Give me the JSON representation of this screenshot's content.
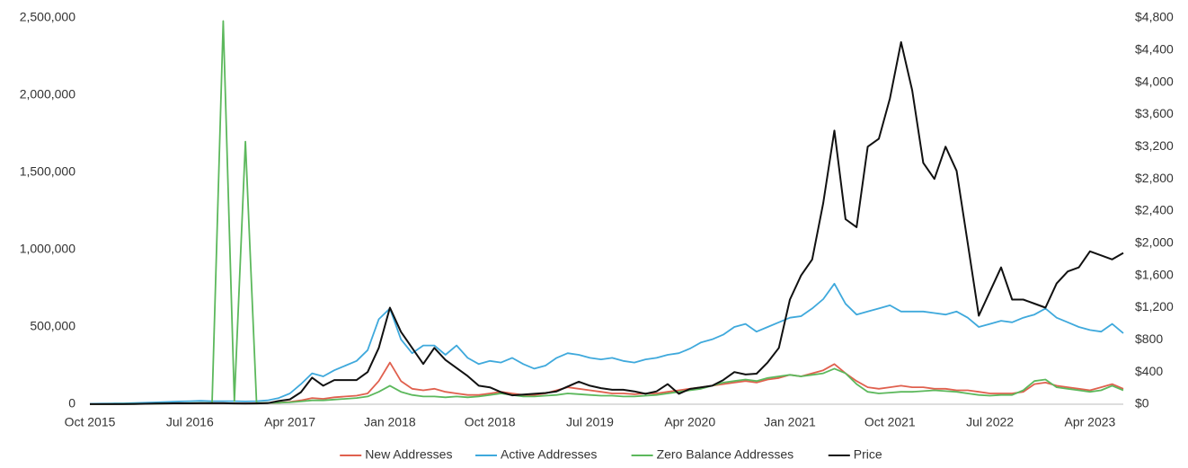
{
  "chart_data": {
    "type": "line",
    "x": [
      "2015-10",
      "2015-11",
      "2015-12",
      "2016-01",
      "2016-02",
      "2016-03",
      "2016-04",
      "2016-05",
      "2016-06",
      "2016-07",
      "2016-08",
      "2016-09",
      "2016-10",
      "2016-11",
      "2016-12",
      "2017-01",
      "2017-02",
      "2017-03",
      "2017-04",
      "2017-05",
      "2017-06",
      "2017-07",
      "2017-08",
      "2017-09",
      "2017-10",
      "2017-11",
      "2017-12",
      "2018-01",
      "2018-02",
      "2018-03",
      "2018-04",
      "2018-05",
      "2018-06",
      "2018-07",
      "2018-08",
      "2018-09",
      "2018-10",
      "2018-11",
      "2018-12",
      "2019-01",
      "2019-02",
      "2019-03",
      "2019-04",
      "2019-05",
      "2019-06",
      "2019-07",
      "2019-08",
      "2019-09",
      "2019-10",
      "2019-11",
      "2019-12",
      "2020-01",
      "2020-02",
      "2020-03",
      "2020-04",
      "2020-05",
      "2020-06",
      "2020-07",
      "2020-08",
      "2020-09",
      "2020-10",
      "2020-11",
      "2020-12",
      "2021-01",
      "2021-02",
      "2021-03",
      "2021-04",
      "2021-05",
      "2021-06",
      "2021-07",
      "2021-08",
      "2021-09",
      "2021-10",
      "2021-11",
      "2021-12",
      "2022-01",
      "2022-02",
      "2022-03",
      "2022-04",
      "2022-05",
      "2022-06",
      "2022-07",
      "2022-08",
      "2022-09",
      "2022-10",
      "2022-11",
      "2022-12",
      "2023-01",
      "2023-02",
      "2023-03",
      "2023-04",
      "2023-05",
      "2023-06",
      "2023-07"
    ],
    "series": [
      {
        "name": "New Addresses",
        "color": "#e0604e",
        "values": [
          1000,
          1500,
          2000,
          2500,
          3000,
          4000,
          5000,
          5000,
          6000,
          6000,
          7000,
          7000,
          7000,
          6000,
          6000,
          7000,
          8000,
          10000,
          15000,
          25000,
          40000,
          35000,
          45000,
          50000,
          55000,
          70000,
          150000,
          270000,
          150000,
          100000,
          90000,
          100000,
          80000,
          70000,
          60000,
          60000,
          70000,
          80000,
          70000,
          60000,
          60000,
          70000,
          90000,
          110000,
          100000,
          90000,
          80000,
          70000,
          70000,
          65000,
          70000,
          70000,
          80000,
          90000,
          100000,
          110000,
          120000,
          130000,
          140000,
          150000,
          140000,
          160000,
          170000,
          190000,
          180000,
          200000,
          220000,
          260000,
          200000,
          150000,
          110000,
          100000,
          110000,
          120000,
          110000,
          110000,
          100000,
          100000,
          90000,
          90000,
          80000,
          70000,
          70000,
          70000,
          80000,
          130000,
          140000,
          120000,
          110000,
          100000,
          90000,
          110000,
          130000,
          100000
        ]
      },
      {
        "name": "Active Addresses",
        "color": "#3fa9dc",
        "values": [
          3000,
          4000,
          5000,
          6000,
          8000,
          10000,
          12000,
          15000,
          18000,
          20000,
          22000,
          20000,
          20000,
          20000,
          18000,
          20000,
          25000,
          40000,
          70000,
          130000,
          200000,
          180000,
          220000,
          250000,
          280000,
          350000,
          550000,
          620000,
          420000,
          330000,
          380000,
          380000,
          320000,
          380000,
          300000,
          260000,
          280000,
          270000,
          300000,
          260000,
          230000,
          250000,
          300000,
          330000,
          320000,
          300000,
          290000,
          300000,
          280000,
          270000,
          290000,
          300000,
          320000,
          330000,
          360000,
          400000,
          420000,
          450000,
          500000,
          520000,
          470000,
          500000,
          530000,
          560000,
          570000,
          620000,
          680000,
          780000,
          650000,
          580000,
          600000,
          620000,
          640000,
          600000,
          600000,
          600000,
          590000,
          580000,
          600000,
          560000,
          500000,
          520000,
          540000,
          530000,
          560000,
          580000,
          620000,
          560000,
          530000,
          500000,
          480000,
          470000,
          520000,
          460000
        ]
      },
      {
        "name": "Zero Balance Addresses",
        "color": "#5cb85c",
        "values": [
          500,
          800,
          1000,
          1500,
          2000,
          3000,
          4000,
          5000,
          6000,
          7000,
          8000,
          8000,
          2480000,
          20000,
          1700000,
          8000,
          9000,
          10000,
          12000,
          18000,
          25000,
          25000,
          30000,
          35000,
          40000,
          50000,
          80000,
          120000,
          80000,
          60000,
          50000,
          50000,
          45000,
          50000,
          45000,
          50000,
          60000,
          70000,
          60000,
          50000,
          50000,
          55000,
          60000,
          70000,
          65000,
          60000,
          55000,
          55000,
          50000,
          50000,
          55000,
          60000,
          70000,
          80000,
          90000,
          100000,
          120000,
          140000,
          150000,
          160000,
          150000,
          170000,
          180000,
          190000,
          180000,
          190000,
          200000,
          230000,
          200000,
          130000,
          80000,
          70000,
          75000,
          80000,
          80000,
          85000,
          90000,
          85000,
          80000,
          70000,
          60000,
          55000,
          60000,
          60000,
          90000,
          150000,
          160000,
          110000,
          100000,
          90000,
          80000,
          90000,
          120000,
          90000
        ]
      },
      {
        "name": "Price",
        "color": "#111111",
        "axis": "y2",
        "values": [
          1,
          1,
          1,
          1,
          3,
          6,
          8,
          10,
          12,
          11,
          12,
          12,
          12,
          10,
          8,
          10,
          13,
          40,
          60,
          150,
          330,
          230,
          300,
          300,
          300,
          400,
          700,
          1200,
          900,
          700,
          500,
          700,
          550,
          450,
          350,
          230,
          210,
          150,
          110,
          120,
          130,
          140,
          160,
          220,
          280,
          230,
          200,
          180,
          180,
          160,
          130,
          160,
          250,
          130,
          190,
          210,
          230,
          300,
          400,
          370,
          380,
          520,
          700,
          1300,
          1600,
          1800,
          2500,
          3400,
          2300,
          2200,
          3200,
          3300,
          3800,
          4500,
          3900,
          3000,
          2800,
          3200,
          2900,
          2000,
          1100,
          1400,
          1700,
          1300,
          1300,
          1250,
          1200,
          1500,
          1650,
          1700,
          1900,
          1850,
          1800,
          1880
        ]
      }
    ],
    "xlim": [
      "2015-10",
      "2023-07"
    ],
    "xticks": [
      {
        "value": "2015-10",
        "label": "Oct 2015"
      },
      {
        "value": "2016-07",
        "label": "Jul 2016"
      },
      {
        "value": "2017-04",
        "label": "Apr 2017"
      },
      {
        "value": "2018-01",
        "label": "Jan 2018"
      },
      {
        "value": "2018-10",
        "label": "Oct 2018"
      },
      {
        "value": "2019-07",
        "label": "Jul 2019"
      },
      {
        "value": "2020-04",
        "label": "Apr 2020"
      },
      {
        "value": "2021-01",
        "label": "Jan 2021"
      },
      {
        "value": "2021-10",
        "label": "Oct 2021"
      },
      {
        "value": "2022-07",
        "label": "Jul 2022"
      },
      {
        "value": "2023-04",
        "label": "Apr 2023"
      }
    ],
    "ylim": [
      0,
      2500000
    ],
    "yticks": [
      0,
      {
        "value": 500000,
        "label": "500,000"
      },
      {
        "value": 1000000,
        "label": "1,000,000"
      },
      {
        "value": 1500000,
        "label": "1,500,000"
      },
      {
        "value": 2000000,
        "label": "2,000,000"
      },
      {
        "value": 2500000,
        "label": "2,500,000"
      }
    ],
    "y2lim": [
      0,
      4800
    ],
    "y2ticks": [
      {
        "value": 0,
        "label": "$0"
      },
      {
        "value": 400,
        "label": "$400"
      },
      {
        "value": 800,
        "label": "$800"
      },
      {
        "value": 1200,
        "label": "$1,200"
      },
      {
        "value": 1600,
        "label": "$1,600"
      },
      {
        "value": 2000,
        "label": "$2,000"
      },
      {
        "value": 2400,
        "label": "$2,400"
      },
      {
        "value": 2800,
        "label": "$2,800"
      },
      {
        "value": 3200,
        "label": "$3,200"
      },
      {
        "value": 3600,
        "label": "$3,600"
      },
      {
        "value": 4000,
        "label": "$4,000"
      },
      {
        "value": 4400,
        "label": "$4,400"
      },
      {
        "value": 4800,
        "label": "$4,800"
      }
    ],
    "legend": "bottom"
  }
}
